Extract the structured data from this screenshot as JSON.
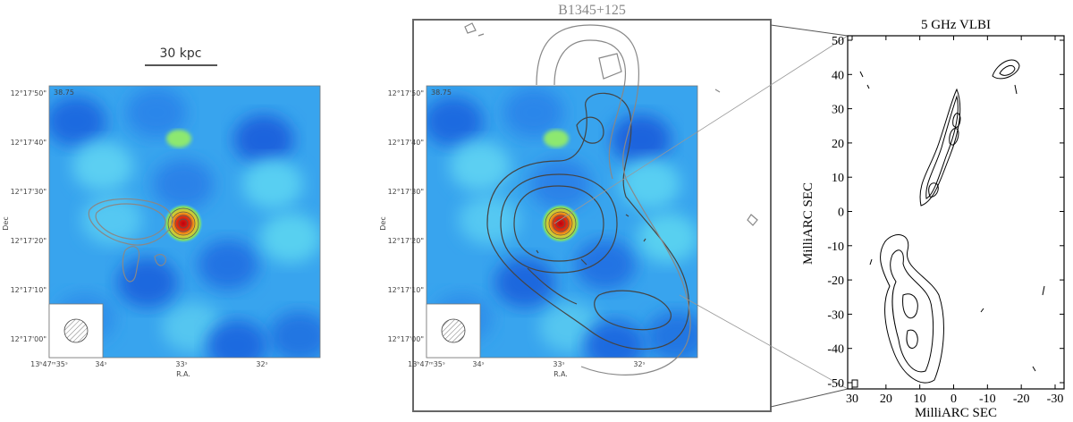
{
  "left_panel": {
    "scale_bar": "30 kpc",
    "corner_label": "38.75",
    "dec_ticks": [
      "12°17'50\"",
      "12°17'40\"",
      "12°17'30\"",
      "12°17'20\"",
      "12°17'10\"",
      "12°17'00\""
    ],
    "ra_ticks": [
      "13ʰ47ᵐ35ˢ",
      "34ˢ",
      "33ˢ",
      "32ˢ"
    ],
    "dec_label": "Dec",
    "ra_label": "R.A."
  },
  "middle_panel": {
    "title": "B1345+125",
    "corner_label": "38.75",
    "dec_ticks": [
      "12°17'50\"",
      "12°17'40\"",
      "12°17'30\"",
      "12°17'20\"",
      "12°17'10\"",
      "12°17'00\""
    ],
    "ra_ticks": [
      "13ʰ47ᵐ35ˢ",
      "34ˢ",
      "33ˢ",
      "32ˢ"
    ],
    "dec_label": "Dec",
    "ra_label": "R.A."
  },
  "right_panel": {
    "title": "5 GHz VLBI",
    "y_label": "MilliARC SEC",
    "x_label": "MilliARC SEC",
    "y_ticks": [
      50,
      40,
      30,
      20,
      10,
      0,
      -10,
      -20,
      -30,
      -40,
      -50
    ],
    "x_ticks": [
      30,
      20,
      10,
      0,
      -10,
      -20,
      -30
    ]
  }
}
